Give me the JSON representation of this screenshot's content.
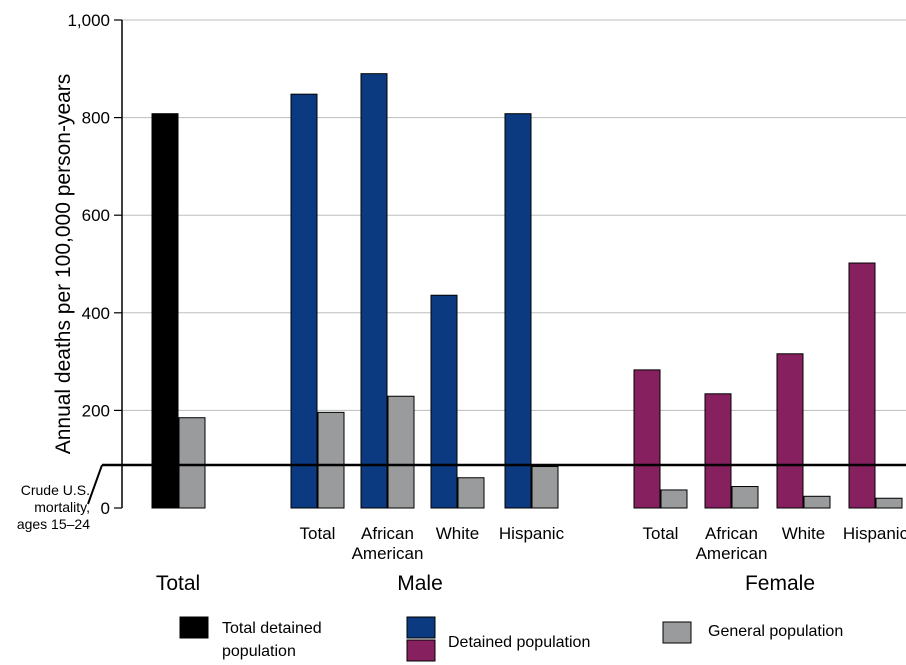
{
  "chart_data": {
    "type": "bar",
    "ylabel": "Annual deaths per 100,000 person-years",
    "ylim": [
      0,
      1000
    ],
    "yticks": [
      "0",
      "200",
      "400",
      "600",
      "800",
      "1,000"
    ],
    "grid": true,
    "colors": {
      "total_detained": "#000000",
      "detained_male": "#0b3a80",
      "detained_female": "#86205f",
      "general": "#9a9b9d"
    },
    "categories": [
      {
        "group": "total",
        "label": "",
        "detained": 808,
        "general": 185,
        "detained_color": "#000000"
      },
      {
        "group": "male",
        "label": "Total",
        "detained": 848,
        "general": 196,
        "detained_color": "#0b3a80"
      },
      {
        "group": "male",
        "label": "African American",
        "detained": 890,
        "general": 229,
        "detained_color": "#0b3a80"
      },
      {
        "group": "male",
        "label": "White",
        "detained": 436,
        "general": 62,
        "detained_color": "#0b3a80"
      },
      {
        "group": "male",
        "label": "Hispanic",
        "detained": 808,
        "general": 85,
        "detained_color": "#0b3a80"
      },
      {
        "group": "female",
        "label": "Total",
        "detained": 283,
        "general": 37,
        "detained_color": "#86205f"
      },
      {
        "group": "female",
        "label": "African American",
        "detained": 234,
        "general": 44,
        "detained_color": "#86205f"
      },
      {
        "group": "female",
        "label": "White",
        "detained": 316,
        "general": 24,
        "detained_color": "#86205f"
      },
      {
        "group": "female",
        "label": "Hispanic",
        "detained": 502,
        "general": 20,
        "detained_color": "#86205f"
      }
    ],
    "groups": [
      {
        "key": "total",
        "label": "Total"
      },
      {
        "key": "male",
        "label": "Male"
      },
      {
        "key": "female",
        "label": "Female"
      }
    ],
    "reference_line": {
      "value": 88,
      "label_lines": [
        "Crude U.S.",
        "mortality,",
        "ages 15–24"
      ]
    },
    "legend": {
      "placement": "bottom",
      "items": [
        {
          "label_lines": [
            "Total detained",
            "population"
          ],
          "swatches": [
            "#000000"
          ]
        },
        {
          "label_lines": [
            "Detained population"
          ],
          "swatches": [
            "#0b3a80",
            "#86205f"
          ]
        },
        {
          "label_lines": [
            "General population"
          ],
          "swatches": [
            "#9a9b9d"
          ]
        }
      ]
    }
  }
}
